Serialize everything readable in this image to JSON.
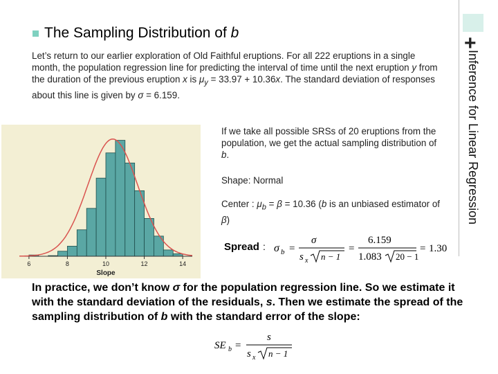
{
  "side_title": "Inference for Linear Regression",
  "slide_title": {
    "prefix": "The Sampling Distribution of ",
    "var": "b"
  },
  "intro": {
    "t1": "Let’s return to our earlier exploration of Old Faithful eruptions. For all 222 eruptions in a single month, the population regression line for predicting the interval of time until the next eruption ",
    "v1": "y",
    "t2": " from the duration of the previous eruption ",
    "v2": "x",
    "t3": " is ",
    "v3": "μ",
    "v3sub": "y",
    "t4": " = 33.97 + 10.36",
    "v4": "x",
    "t5": ". The standard deviation of responses about this line is given by ",
    "v5": "σ",
    "t6": " = 6.159."
  },
  "srs_text": {
    "t1": "If we take all possible SRSs of 20 eruptions from the population, we get the actual sampling distribution of ",
    "v1": "b",
    "t2": "."
  },
  "shape": {
    "label": "Shape",
    "value": ": Normal"
  },
  "center": {
    "label": "Center",
    "t1": " : ",
    "mu": "μ",
    "sub": "b",
    "t2": " = ",
    "beta": "β",
    "t3": " = 10.36 (",
    "b": "b",
    "t4": " is an unbiased estimator of ",
    "beta2": "β",
    "t5": ")"
  },
  "spread": {
    "label": "Spread",
    "colon": ":",
    "sigma": "σ",
    "sub": "b",
    "eq": "=",
    "num1": "σ",
    "den1_s": "s",
    "den1_sub": "x",
    "den1_root": "n − 1",
    "eq2": "=",
    "num2": "6.159",
    "den2_a": "1.083",
    "den2_root": "20 − 1",
    "eq3": "=",
    "result": "1.30"
  },
  "practice": {
    "t1": "In practice, we don’t know ",
    "sigma": "σ",
    "t2": " for the population regression line. So we estimate it with the standard deviation of the residuals, ",
    "s": "s",
    "t3": ". Then we estimate the spread of the sampling distribution of ",
    "b": "b",
    "t4": " with the ",
    "bold": "standard error of the slope",
    "t5": ":"
  },
  "se_formula": {
    "se": "SE",
    "sub": "b",
    "eq": "=",
    "num": "s",
    "den_s": "s",
    "den_sub": "x",
    "den_root": "n − 1"
  },
  "histogram": {
    "xlabel": "Slope",
    "xticks": [
      "6",
      "8",
      "10",
      "12",
      "14"
    ],
    "bar_color": "#5aa7a4",
    "curve_color": "#d9534f",
    "panel_color": "#f3efd4"
  },
  "chart_data": {
    "type": "bar",
    "xlabel": "Slope",
    "x": [
      6,
      7,
      7.5,
      8,
      8.5,
      9,
      9.5,
      10,
      10.5,
      11,
      11.5,
      12,
      12.5,
      13,
      13.5
    ],
    "values": [
      1,
      0.5,
      4,
      8,
      21,
      38,
      62,
      82,
      92,
      74,
      52,
      30,
      16,
      5,
      2
    ],
    "xlim": [
      5.5,
      14.5
    ],
    "ylim": [
      0,
      100
    ],
    "xticks": [
      6,
      8,
      10,
      12,
      14
    ],
    "curve": {
      "type": "normal",
      "mean": 10.36,
      "sd": 1.3
    }
  }
}
